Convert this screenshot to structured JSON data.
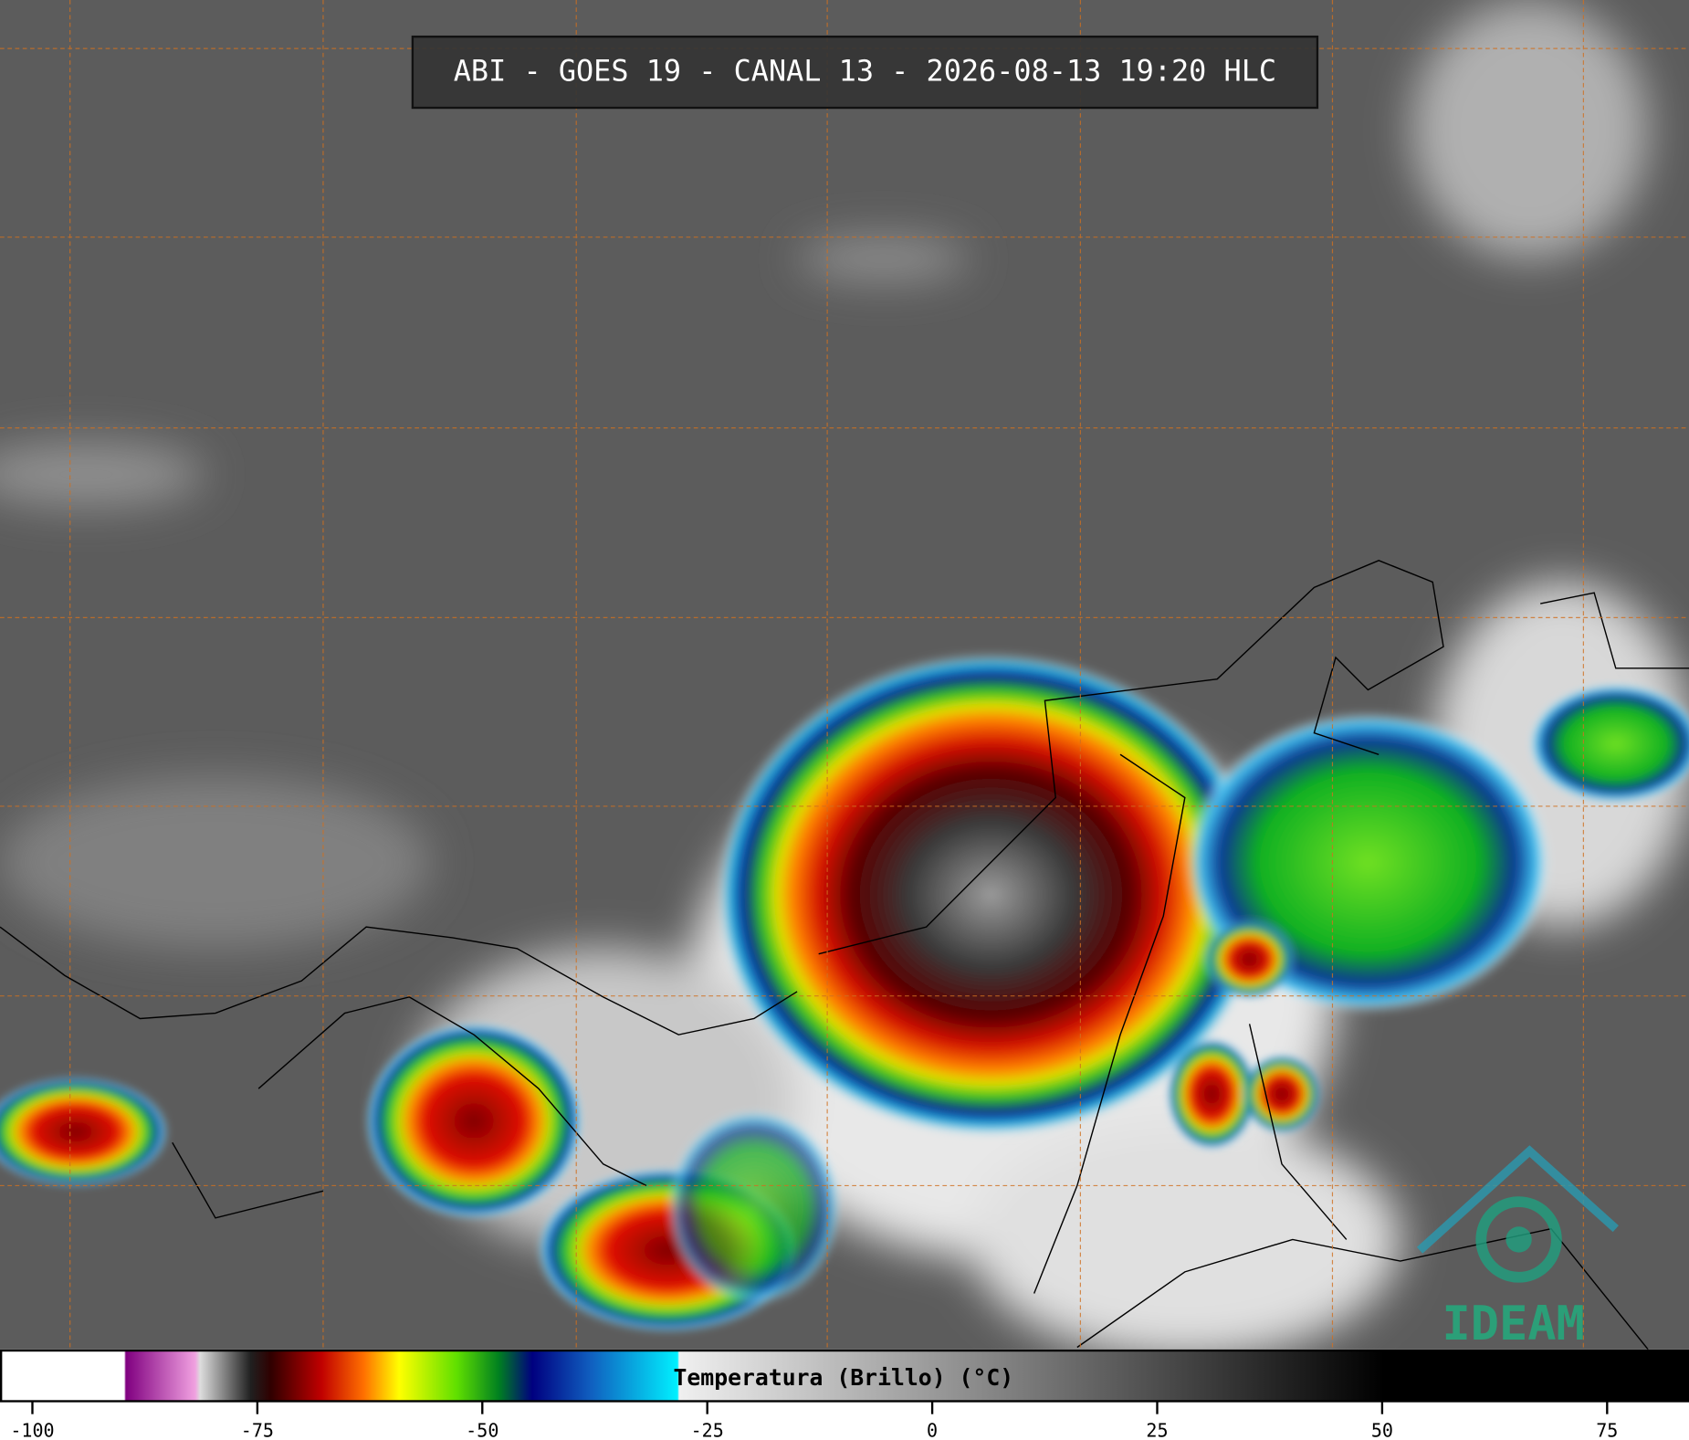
{
  "header": {
    "title": "ABI - GOES 19 - CANAL 13 - 2026-08-13 19:20 HLC"
  },
  "colorbar": {
    "label": "Temperatura (Brillo) (°C)",
    "range": [
      -103.6,
      84.1
    ],
    "ticks": [
      -100,
      -75,
      -50,
      -25,
      0,
      25,
      50,
      75
    ]
  },
  "logo": {
    "text": "IDEAM"
  }
}
